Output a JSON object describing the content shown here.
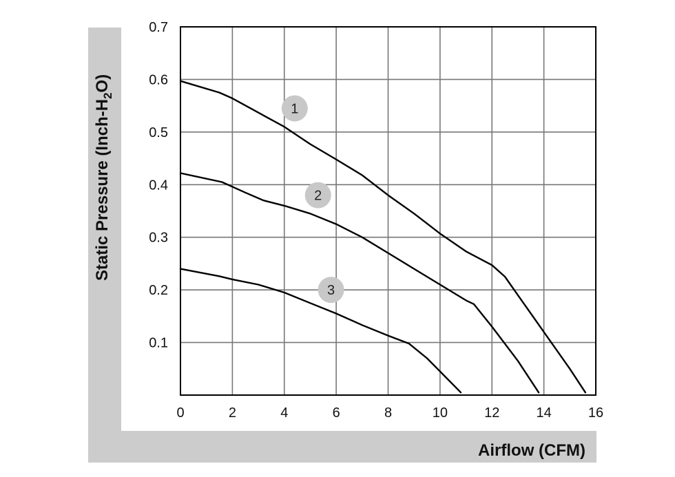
{
  "chart_data": {
    "type": "line",
    "xlabel": "Airflow (CFM)",
    "ylabel_parts": {
      "before": "Static Pressure (Inch-H",
      "sub": "2",
      "after": "O)"
    },
    "xlim": [
      0,
      16
    ],
    "ylim": [
      0,
      0.7
    ],
    "x_ticks": [
      "0",
      "2",
      "4",
      "6",
      "8",
      "10",
      "12",
      "14",
      "16"
    ],
    "y_ticks": [
      "0.1",
      "0.2",
      "0.3",
      "0.4",
      "0.5",
      "0.6",
      "0.7"
    ],
    "grid": true,
    "series": [
      {
        "name": "1",
        "points": [
          [
            0,
            0.597
          ],
          [
            1.5,
            0.575
          ],
          [
            2,
            0.564
          ],
          [
            3,
            0.537
          ],
          [
            4,
            0.51
          ],
          [
            5,
            0.477
          ],
          [
            6,
            0.448
          ],
          [
            7,
            0.418
          ],
          [
            8,
            0.38
          ],
          [
            9,
            0.345
          ],
          [
            10,
            0.307
          ],
          [
            11,
            0.273
          ],
          [
            12,
            0.247
          ],
          [
            12.5,
            0.225
          ],
          [
            13,
            0.19
          ],
          [
            14,
            0.12
          ],
          [
            15,
            0.05
          ],
          [
            15.6,
            0.005
          ]
        ],
        "label_at": [
          4.4,
          0.545
        ]
      },
      {
        "name": "2",
        "points": [
          [
            0,
            0.422
          ],
          [
            1.6,
            0.405
          ],
          [
            2.5,
            0.385
          ],
          [
            3.2,
            0.37
          ],
          [
            4,
            0.36
          ],
          [
            5,
            0.345
          ],
          [
            6,
            0.325
          ],
          [
            7,
            0.3
          ],
          [
            8,
            0.27
          ],
          [
            9,
            0.24
          ],
          [
            10,
            0.21
          ],
          [
            11,
            0.18
          ],
          [
            11.3,
            0.173
          ],
          [
            12,
            0.13
          ],
          [
            13,
            0.065
          ],
          [
            13.8,
            0.005
          ]
        ],
        "label_at": [
          5.3,
          0.38
        ]
      },
      {
        "name": "3",
        "points": [
          [
            0,
            0.24
          ],
          [
            1.5,
            0.226
          ],
          [
            2,
            0.22
          ],
          [
            3,
            0.21
          ],
          [
            4,
            0.195
          ],
          [
            5,
            0.175
          ],
          [
            6,
            0.155
          ],
          [
            7,
            0.133
          ],
          [
            8,
            0.113
          ],
          [
            8.8,
            0.098
          ],
          [
            9.5,
            0.07
          ],
          [
            10,
            0.045
          ],
          [
            10.8,
            0.005
          ]
        ],
        "label_at": [
          5.8,
          0.2
        ]
      }
    ]
  }
}
